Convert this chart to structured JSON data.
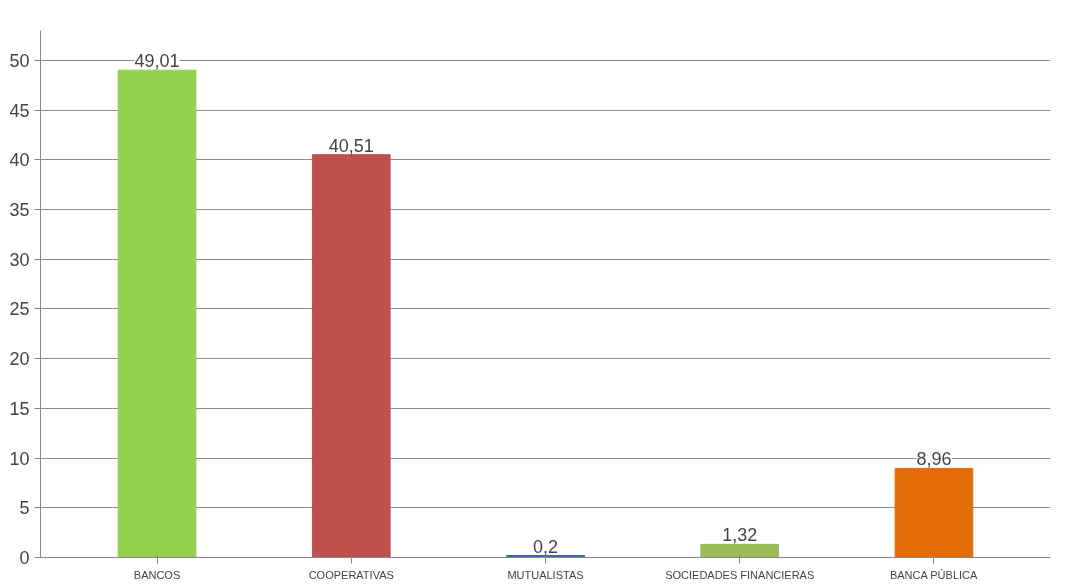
{
  "chart_data": {
    "type": "bar",
    "categories": [
      "BANCOS",
      "COOPERATIVAS",
      "MUTUALISTAS",
      "SOCIEDADES FINANCIERAS",
      "BANCA PÚBLICA"
    ],
    "values": [
      49.01,
      40.51,
      0.2,
      1.32,
      8.96
    ],
    "colors": [
      "#92d050",
      "#c0504d",
      "#3b6aa0",
      "#9bbb59",
      "#e36c09"
    ],
    "value_labels": [
      "49,01",
      "40,51",
      "0,2",
      "1,32",
      "8,96"
    ],
    "ylim": [
      0,
      53
    ],
    "yticks": [
      0,
      5,
      10,
      15,
      20,
      25,
      30,
      35,
      40,
      45,
      50
    ],
    "grid": "y"
  }
}
